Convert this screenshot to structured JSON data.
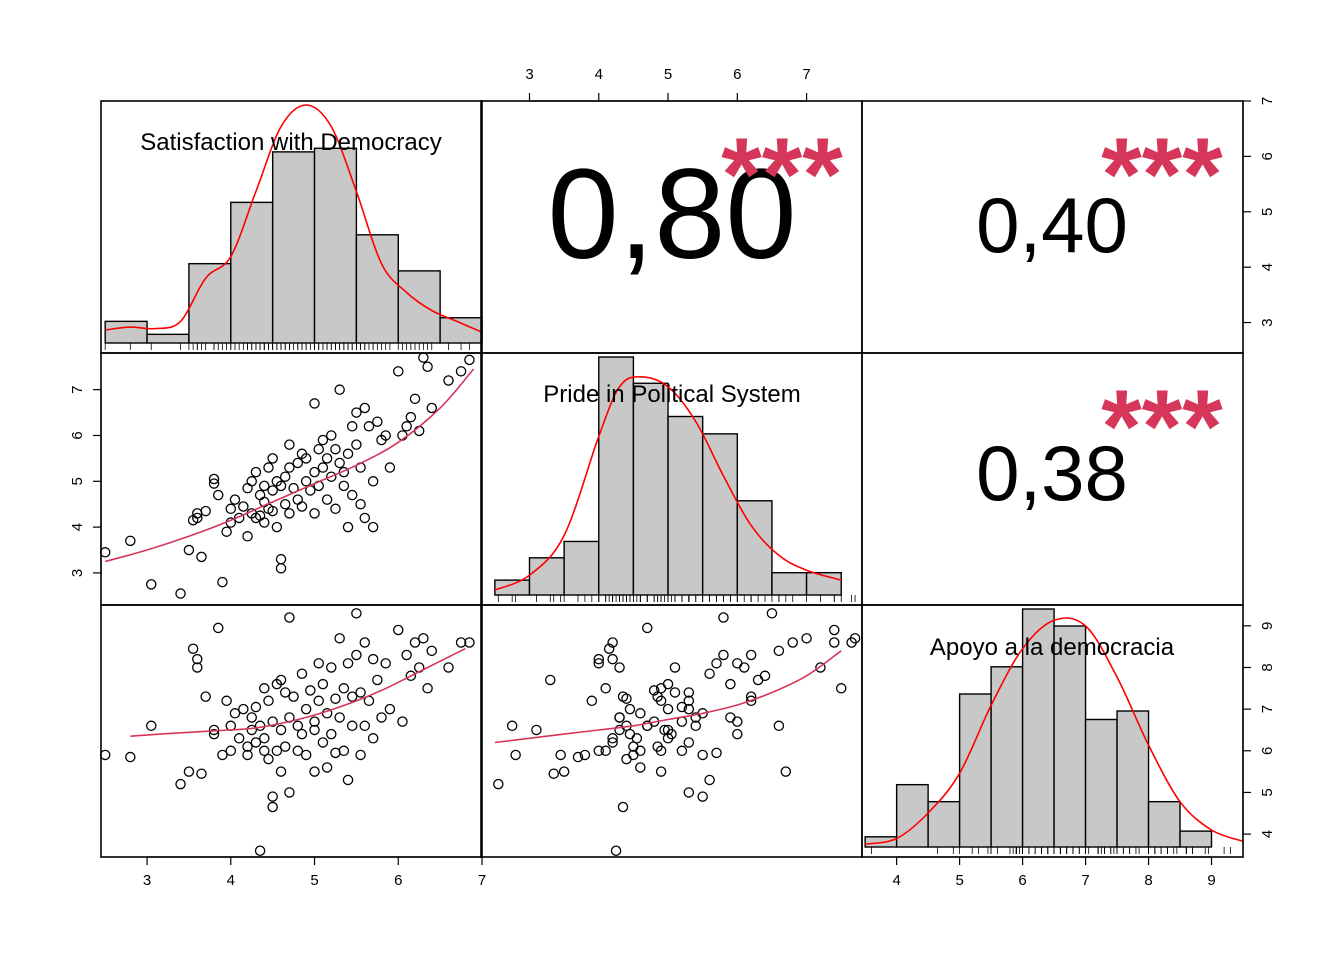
{
  "colors": {
    "hist_fill": "#c8c8c8",
    "density": "#ff0000",
    "smooth": "#d6365a",
    "stars": "#d6365a",
    "frame": "#000000"
  },
  "variables": [
    "Satisfaction with Democracy",
    "Pride in Political System",
    "Apoyo a la democracia"
  ],
  "correlations": [
    {
      "label": "0,80",
      "stars": "***"
    },
    {
      "label": "0,40",
      "stars": "***"
    },
    {
      "label": "0,38",
      "stars": "***"
    }
  ],
  "chart_data": {
    "type": "scatter",
    "layout": "scatterplot-matrix",
    "axes": {
      "var1": {
        "lim": [
          2.45,
          7.0
        ],
        "ticks": [
          3,
          4,
          5,
          6,
          7
        ]
      },
      "var2": {
        "lim": [
          2.3,
          7.8
        ],
        "ticks": [
          3,
          4,
          5,
          6,
          7
        ]
      },
      "var3": {
        "lim": [
          3.45,
          9.5
        ],
        "ticks": [
          4,
          5,
          6,
          7,
          8,
          9
        ]
      }
    },
    "histograms": [
      {
        "var": 0,
        "breaks": [
          2.5,
          3.0,
          3.5,
          4.0,
          4.5,
          5.0,
          5.5,
          6.0,
          6.5,
          7.0
        ],
        "density": [
          0.03,
          0.012,
          0.11,
          0.195,
          0.265,
          0.27,
          0.15,
          0.1,
          0.035
        ]
      },
      {
        "var": 1,
        "breaks": [
          2.5,
          3.0,
          3.5,
          4.0,
          4.5,
          5.0,
          5.5,
          6.0,
          6.5,
          7.0,
          7.5
        ],
        "density": [
          0.03,
          0.075,
          0.108,
          0.48,
          0.427,
          0.36,
          0.325,
          0.19,
          0.045,
          0.045
        ]
      },
      {
        "var": 2,
        "breaks": [
          3.5,
          4.0,
          4.5,
          5.0,
          5.5,
          6.0,
          6.5,
          7.0,
          7.5,
          8.0,
          8.5,
          9.0
        ],
        "density": [
          0.018,
          0.11,
          0.08,
          0.27,
          0.318,
          0.42,
          0.39,
          0.225,
          0.24,
          0.08,
          0.028
        ]
      }
    ],
    "density_curves": [
      {
        "var": 0,
        "x": [
          2.5,
          2.8,
          3.1,
          3.4,
          3.7,
          4.0,
          4.3,
          4.6,
          4.9,
          5.2,
          5.5,
          5.8,
          6.1,
          6.4,
          6.7,
          7.0
        ],
        "y": [
          0.018,
          0.022,
          0.02,
          0.03,
          0.09,
          0.12,
          0.21,
          0.3,
          0.33,
          0.3,
          0.21,
          0.11,
          0.07,
          0.045,
          0.03,
          0.015
        ]
      },
      {
        "var": 1,
        "x": [
          2.5,
          3.0,
          3.5,
          4.0,
          4.3,
          4.6,
          5.0,
          5.4,
          5.8,
          6.2,
          6.6,
          7.0,
          7.5
        ],
        "y": [
          0.01,
          0.04,
          0.12,
          0.32,
          0.42,
          0.44,
          0.42,
          0.35,
          0.24,
          0.14,
          0.08,
          0.05,
          0.03
        ]
      },
      {
        "var": 2,
        "x": [
          3.5,
          4.0,
          4.5,
          5.0,
          5.5,
          6.0,
          6.5,
          7.0,
          7.5,
          8.0,
          8.5,
          9.0,
          9.5
        ],
        "y": [
          0.005,
          0.015,
          0.06,
          0.13,
          0.25,
          0.35,
          0.4,
          0.39,
          0.3,
          0.18,
          0.08,
          0.03,
          0.01
        ]
      }
    ],
    "smoothers": [
      {
        "xvar": 0,
        "yvar": 1,
        "x": [
          2.5,
          3.0,
          3.5,
          4.0,
          4.5,
          5.0,
          5.5,
          6.0,
          6.5,
          6.9
        ],
        "y": [
          3.25,
          3.5,
          3.8,
          4.15,
          4.55,
          4.95,
          5.35,
          5.85,
          6.6,
          7.45
        ]
      },
      {
        "xvar": 0,
        "yvar": 2,
        "x": [
          2.8,
          3.3,
          3.8,
          4.3,
          4.8,
          5.3,
          5.8,
          6.3,
          6.8
        ],
        "y": [
          6.35,
          6.42,
          6.48,
          6.55,
          6.75,
          7.05,
          7.45,
          7.95,
          8.45
        ]
      },
      {
        "xvar": 1,
        "yvar": 2,
        "x": [
          2.5,
          3.0,
          3.5,
          4.0,
          4.5,
          5.0,
          5.5,
          6.0,
          6.5,
          7.0,
          7.5
        ],
        "y": [
          6.2,
          6.3,
          6.4,
          6.5,
          6.6,
          6.75,
          6.9,
          7.1,
          7.4,
          7.8,
          8.4
        ]
      }
    ],
    "points": [
      [
        2.5,
        3.45,
        5.9
      ],
      [
        2.8,
        3.7,
        5.85
      ],
      [
        3.05,
        2.75,
        6.6
      ],
      [
        3.4,
        2.55,
        5.2
      ],
      [
        3.5,
        3.5,
        5.5
      ],
      [
        3.55,
        4.15,
        8.45
      ],
      [
        3.6,
        4.2,
        8.2
      ],
      [
        3.6,
        4.3,
        8.0
      ],
      [
        3.65,
        3.35,
        5.45
      ],
      [
        3.7,
        4.35,
        7.3
      ],
      [
        3.8,
        4.95,
        6.5
      ],
      [
        3.8,
        5.05,
        6.4
      ],
      [
        3.85,
        4.7,
        8.95
      ],
      [
        3.9,
        2.8,
        5.9
      ],
      [
        3.95,
        3.9,
        7.2
      ],
      [
        4.0,
        4.1,
        6.0
      ],
      [
        4.0,
        4.4,
        6.6
      ],
      [
        4.05,
        4.6,
        6.9
      ],
      [
        4.1,
        4.2,
        6.3
      ],
      [
        4.15,
        4.45,
        7.0
      ],
      [
        4.2,
        4.85,
        6.1
      ],
      [
        4.2,
        3.8,
        5.9
      ],
      [
        4.25,
        5.0,
        6.5
      ],
      [
        4.25,
        4.3,
        6.8
      ],
      [
        4.3,
        4.2,
        6.2
      ],
      [
        4.3,
        5.2,
        7.05
      ],
      [
        4.35,
        4.7,
        6.6
      ],
      [
        4.35,
        4.25,
        3.6
      ],
      [
        4.4,
        4.9,
        6.0
      ],
      [
        4.4,
        4.1,
        7.5
      ],
      [
        4.4,
        4.55,
        6.3
      ],
      [
        4.45,
        5.3,
        7.2
      ],
      [
        4.45,
        4.4,
        5.8
      ],
      [
        4.5,
        4.8,
        6.7
      ],
      [
        4.5,
        5.5,
        4.9
      ],
      [
        4.5,
        4.35,
        4.65
      ],
      [
        4.55,
        5.0,
        7.6
      ],
      [
        4.55,
        4.0,
        6.0
      ],
      [
        4.6,
        3.1,
        6.5
      ],
      [
        4.6,
        3.3,
        7.7
      ],
      [
        4.6,
        4.9,
        5.5
      ],
      [
        4.65,
        5.1,
        7.4
      ],
      [
        4.65,
        4.5,
        6.1
      ],
      [
        4.7,
        5.3,
        5.0
      ],
      [
        4.7,
        5.8,
        9.2
      ],
      [
        4.7,
        4.3,
        6.8
      ],
      [
        4.75,
        4.85,
        7.3
      ],
      [
        4.8,
        5.4,
        6.6
      ],
      [
        4.8,
        4.6,
        6.0
      ],
      [
        4.85,
        5.6,
        7.85
      ],
      [
        4.85,
        4.45,
        6.4
      ],
      [
        4.9,
        5.0,
        7.0
      ],
      [
        4.9,
        5.5,
        5.9
      ],
      [
        4.95,
        4.8,
        7.45
      ],
      [
        5.0,
        5.2,
        6.7
      ],
      [
        5.0,
        6.7,
        5.5
      ],
      [
        5.0,
        4.3,
        6.5
      ],
      [
        5.05,
        5.7,
        8.1
      ],
      [
        5.05,
        4.9,
        7.2
      ],
      [
        5.1,
        5.3,
        6.2
      ],
      [
        5.1,
        5.9,
        7.6
      ],
      [
        5.15,
        4.6,
        5.6
      ],
      [
        5.15,
        5.5,
        6.9
      ],
      [
        5.2,
        5.1,
        8.0
      ],
      [
        5.2,
        6.0,
        6.4
      ],
      [
        5.25,
        4.4,
        7.25
      ],
      [
        5.25,
        5.7,
        5.95
      ],
      [
        5.3,
        5.4,
        6.8
      ],
      [
        5.3,
        7.0,
        8.7
      ],
      [
        5.35,
        4.9,
        7.5
      ],
      [
        5.35,
        5.2,
        6.0
      ],
      [
        5.4,
        4.0,
        8.1
      ],
      [
        5.4,
        5.6,
        5.3
      ],
      [
        5.45,
        6.2,
        7.3
      ],
      [
        5.45,
        4.7,
        6.6
      ],
      [
        5.5,
        5.8,
        8.3
      ],
      [
        5.5,
        6.5,
        9.3
      ],
      [
        5.55,
        5.3,
        7.4
      ],
      [
        5.55,
        4.5,
        5.9
      ],
      [
        5.6,
        6.6,
        6.6
      ],
      [
        5.6,
        4.2,
        8.6
      ],
      [
        5.65,
        6.2,
        7.2
      ],
      [
        5.7,
        5.0,
        6.3
      ],
      [
        5.7,
        4.0,
        8.2
      ],
      [
        5.75,
        6.3,
        7.7
      ],
      [
        5.8,
        5.9,
        6.8
      ],
      [
        5.85,
        6.0,
        8.1
      ],
      [
        5.9,
        5.3,
        7.0
      ],
      [
        6.0,
        7.4,
        8.9
      ],
      [
        6.05,
        6.0,
        6.7
      ],
      [
        6.1,
        6.2,
        8.3
      ],
      [
        6.15,
        6.4,
        7.8
      ],
      [
        6.2,
        6.8,
        8.6
      ],
      [
        6.25,
        6.1,
        8.0
      ],
      [
        6.3,
        7.7,
        8.7
      ],
      [
        6.35,
        7.5,
        7.5
      ],
      [
        6.4,
        6.6,
        8.4
      ],
      [
        6.6,
        7.2,
        8.0
      ],
      [
        6.75,
        7.4,
        8.6
      ],
      [
        6.85,
        7.65,
        8.6
      ]
    ]
  }
}
